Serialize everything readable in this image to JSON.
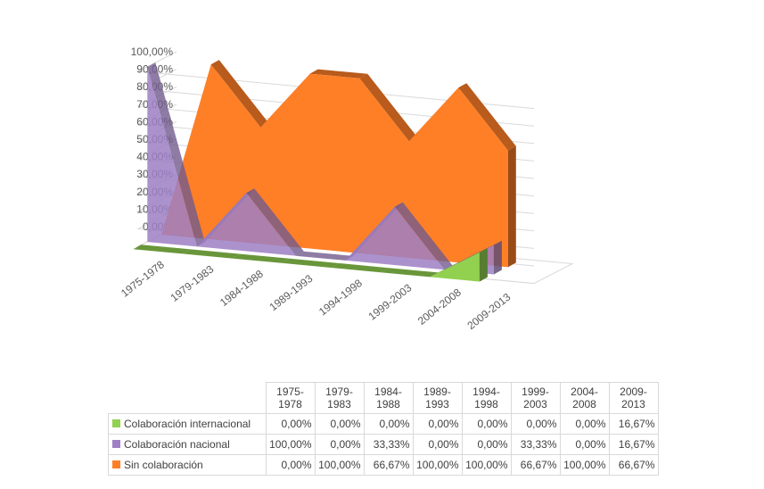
{
  "chart_data": {
    "type": "area",
    "subtype": "3d-area",
    "categories": [
      "1975-1978",
      "1979-1983",
      "1984-1988",
      "1989-1993",
      "1994-1998",
      "1999-2003",
      "2004-2008",
      "2009-2013"
    ],
    "categories_wrapped": [
      [
        "1975-",
        "1978"
      ],
      [
        "1979-",
        "1983"
      ],
      [
        "1984-",
        "1988"
      ],
      [
        "1989-",
        "1993"
      ],
      [
        "1994-",
        "1998"
      ],
      [
        "1999-",
        "2003"
      ],
      [
        "2004-",
        "2008"
      ],
      [
        "2009-",
        "2013"
      ]
    ],
    "y_ticks": [
      "0,00%",
      "10,00%",
      "20,00%",
      "30,00%",
      "40,00%",
      "50,00%",
      "60,00%",
      "70,00%",
      "80,00%",
      "90,00%",
      "100,00%"
    ],
    "ylim": [
      0,
      100
    ],
    "grid": true,
    "legend": "data-table",
    "series": [
      {
        "name": "Colaboración internacional",
        "color": "#92d050",
        "values": [
          0,
          0,
          0,
          0,
          0,
          0,
          0,
          16.67
        ],
        "labels": [
          "0,00%",
          "0,00%",
          "0,00%",
          "0,00%",
          "0,00%",
          "0,00%",
          "0,00%",
          "16,67%"
        ]
      },
      {
        "name": "Colaboración nacional",
        "color": "#9e7fc4",
        "values": [
          100,
          0,
          33.33,
          0,
          0,
          33.33,
          0,
          16.67
        ],
        "labels": [
          "100,00%",
          "0,00%",
          "33,33%",
          "0,00%",
          "0,00%",
          "33,33%",
          "0,00%",
          "16,67%"
        ]
      },
      {
        "name": "Sin colaboración",
        "color": "#ff7f27",
        "values": [
          0,
          100,
          66.67,
          100,
          100,
          66.67,
          100,
          66.67
        ],
        "labels": [
          "0,00%",
          "100,00%",
          "66,67%",
          "100,00%",
          "100,00%",
          "66,67%",
          "100,00%",
          "66,67%"
        ]
      }
    ]
  }
}
